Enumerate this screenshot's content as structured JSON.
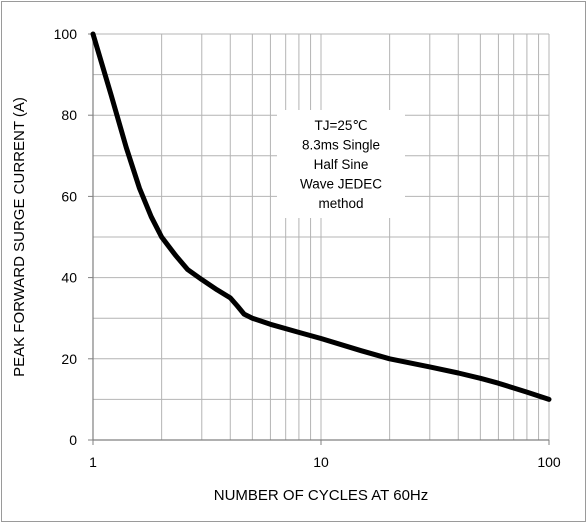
{
  "chart_data": {
    "type": "line",
    "title": "",
    "xlabel": "NUMBER OF CYCLES AT 60Hz",
    "ylabel": "PEAK FORWARD SURGE CURRENT (A)",
    "x_scale": "log",
    "xlim": [
      1,
      100
    ],
    "ylim": [
      0,
      100
    ],
    "x_ticks": [
      1,
      10,
      100
    ],
    "x_tick_labels": [
      "1",
      "10",
      "100"
    ],
    "y_ticks": [
      0,
      20,
      40,
      60,
      80,
      100
    ],
    "y_tick_labels": [
      "0",
      "20",
      "40",
      "60",
      "80",
      "100"
    ],
    "grid": true,
    "series": [
      {
        "x": [
          1,
          1.2,
          1.4,
          1.6,
          1.8,
          2,
          2.3,
          2.6,
          3,
          3.5,
          4,
          4.3,
          4.6,
          5,
          6,
          8,
          10,
          15,
          20,
          30,
          40,
          50,
          60,
          70,
          80,
          100
        ],
        "y": [
          100,
          85,
          72,
          62,
          55,
          50,
          45.5,
          42,
          39.5,
          37,
          35,
          33,
          31,
          30,
          28.5,
          26.5,
          25,
          22,
          20,
          18,
          16.5,
          15.2,
          14,
          12.8,
          11.8,
          10
        ],
        "color": "#000000"
      }
    ],
    "annotation": {
      "lines": [
        "TJ=25℃",
        "8.3ms Single",
        "Half  Sine",
        "Wave JEDEC",
        "method"
      ]
    }
  }
}
